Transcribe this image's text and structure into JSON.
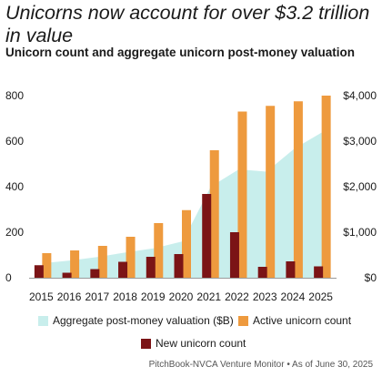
{
  "title": "Unicorns now account for over $3.2 trillion in value",
  "subtitle": "Unicorn count and aggregate unicorn post-money valuation",
  "footer": "PitchBook-NVCA Venture Monitor  •  As of June 30, 2025",
  "colors": {
    "area": "#c8eeec",
    "active": "#ee9a3e",
    "new": "#7b1416"
  },
  "legend": {
    "area": "Aggregate post-money valuation ($B)",
    "active": "Active unicorn count",
    "new": "New unicorn count"
  },
  "chart_data": {
    "type": "bar",
    "categories": [
      "2015",
      "2016",
      "2017",
      "2018",
      "2019",
      "2020",
      "2021",
      "2022",
      "2023",
      "2024",
      "2025"
    ],
    "series": [
      {
        "name": "Active unicorn count",
        "kind": "bar",
        "axis": "left",
        "values": [
          108,
          120,
          140,
          180,
          240,
          297,
          560,
          730,
          755,
          775,
          800
        ]
      },
      {
        "name": "New unicorn count",
        "kind": "bar",
        "axis": "left",
        "values": [
          55,
          22,
          38,
          70,
          92,
          104,
          368,
          200,
          48,
          72,
          50
        ]
      },
      {
        "name": "Aggregate post-money valuation ($B)",
        "kind": "area",
        "axis": "right",
        "values": [
          320,
          380,
          460,
          560,
          650,
          800,
          2000,
          2380,
          2330,
          2840,
          3200
        ]
      }
    ],
    "y_left": {
      "min": 0,
      "max": 800,
      "ticks": [
        0,
        200,
        400,
        600,
        800
      ],
      "tick_labels": [
        "0",
        "200",
        "400",
        "600",
        "800"
      ]
    },
    "y_right": {
      "min": 0,
      "max": 4000,
      "ticks": [
        0,
        1000,
        2000,
        3000,
        4000
      ],
      "tick_labels": [
        "$0",
        "$1,000",
        "$2,000",
        "$3,000",
        "$4,000"
      ]
    },
    "grid": false,
    "legend_position": "bottom"
  }
}
